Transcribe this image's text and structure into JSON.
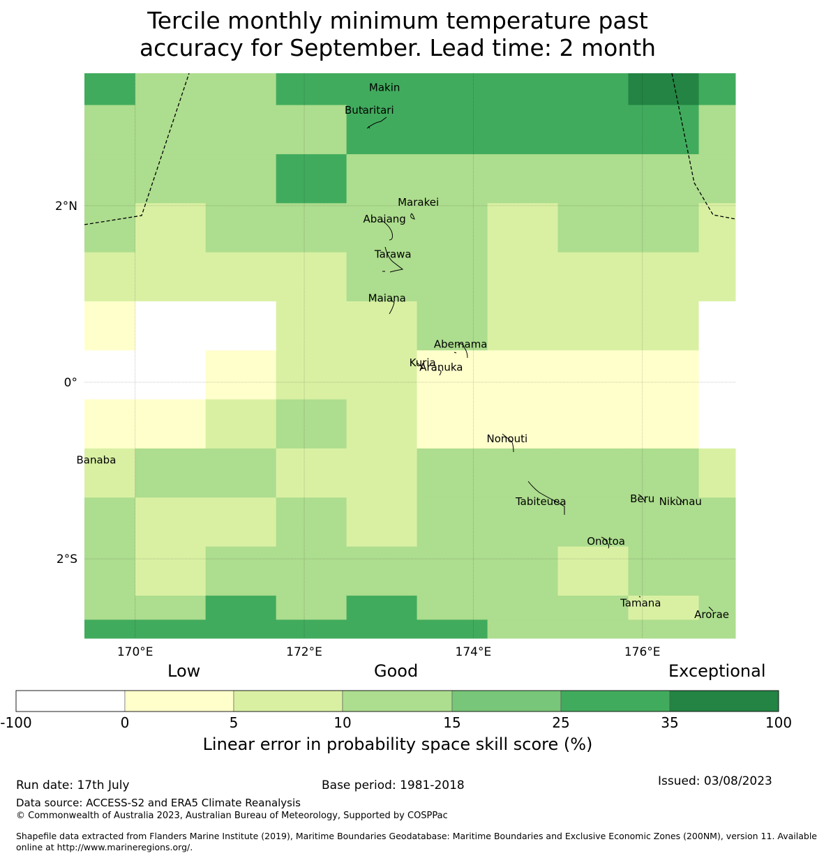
{
  "title": {
    "line1": "Tercile monthly minimum temperature past",
    "line2": "accuracy for September. Lead time: 2 month"
  },
  "map": {
    "lon_range": [
      169.4,
      177.1
    ],
    "lat_range": [
      -2.9,
      3.5
    ],
    "grid_lons": [
      170,
      172,
      174,
      176
    ],
    "grid_lats": [
      2,
      0,
      -2
    ],
    "x_ticks": [
      "170°E",
      "172°E",
      "174°E",
      "176°E"
    ],
    "y_ticks": [
      "2°N",
      "0°",
      "2°S"
    ],
    "cell_columns_lon": [
      169.4,
      170.0,
      170.833,
      171.667,
      172.5,
      173.333,
      174.167,
      175.0,
      175.833,
      176.667,
      177.1
    ],
    "cell_rows_lat_top_down": [
      3.5,
      3.14,
      2.583,
      2.028,
      1.472,
      0.917,
      0.361,
      -0.194,
      -0.75,
      -1.306,
      -1.861,
      -2.417,
      -2.69,
      -2.9
    ],
    "skill_classes_grid": [
      [
        5,
        3,
        3,
        5,
        5,
        5,
        5,
        5,
        6,
        5
      ],
      [
        3,
        3,
        3,
        3,
        5,
        5,
        5,
        5,
        5,
        3
      ],
      [
        3,
        3,
        3,
        5,
        3,
        3,
        3,
        3,
        3,
        3
      ],
      [
        3,
        2,
        3,
        3,
        3,
        3,
        2,
        3,
        3,
        2
      ],
      [
        2,
        2,
        2,
        2,
        3,
        3,
        2,
        2,
        2,
        2
      ],
      [
        1,
        0,
        0,
        2,
        2,
        3,
        2,
        2,
        2,
        0
      ],
      [
        0,
        0,
        1,
        2,
        2,
        1,
        1,
        1,
        1,
        0
      ],
      [
        1,
        1,
        2,
        3,
        2,
        1,
        1,
        1,
        1,
        0
      ],
      [
        2,
        3,
        3,
        2,
        2,
        3,
        3,
        3,
        3,
        2
      ],
      [
        3,
        2,
        2,
        3,
        2,
        3,
        3,
        3,
        3,
        3
      ],
      [
        3,
        2,
        3,
        3,
        3,
        3,
        3,
        2,
        3,
        3
      ],
      [
        3,
        3,
        5,
        3,
        5,
        3,
        3,
        3,
        2,
        3
      ],
      [
        5,
        5,
        5,
        5,
        5,
        5,
        3,
        3,
        3,
        3
      ]
    ],
    "islands": [
      {
        "name": "Makin",
        "lon": 172.95,
        "lat": 3.34
      },
      {
        "name": "Butaritari",
        "lon": 172.77,
        "lat": 3.08
      },
      {
        "name": "Marakei",
        "lon": 173.35,
        "lat": 2.04
      },
      {
        "name": "Abaiang",
        "lon": 172.95,
        "lat": 1.85
      },
      {
        "name": "Tarawa",
        "lon": 173.05,
        "lat": 1.45
      },
      {
        "name": "Maiana",
        "lon": 172.98,
        "lat": 0.95
      },
      {
        "name": "Abemama",
        "lon": 173.85,
        "lat": 0.43
      },
      {
        "name": "Kuria",
        "lon": 173.4,
        "lat": 0.22
      },
      {
        "name": "Aranuka",
        "lon": 173.62,
        "lat": 0.17
      },
      {
        "name": "Nonouti",
        "lon": 174.4,
        "lat": -0.64
      },
      {
        "name": "Banaba",
        "lon": 169.54,
        "lat": -0.88
      },
      {
        "name": "Tabiteuea",
        "lon": 174.8,
        "lat": -1.35
      },
      {
        "name": "Beru",
        "lon": 176.0,
        "lat": -1.32
      },
      {
        "name": "Nikunau",
        "lon": 176.45,
        "lat": -1.35
      },
      {
        "name": "Onotoa",
        "lon": 175.57,
        "lat": -1.8
      },
      {
        "name": "Tamana",
        "lon": 175.98,
        "lat": -2.5
      },
      {
        "name": "Arorae",
        "lon": 176.82,
        "lat": -2.63
      }
    ]
  },
  "legend": {
    "categories": [
      "Low",
      "Good",
      "Exceptional"
    ],
    "ticks": [
      "-100",
      "0",
      "5",
      "10",
      "15",
      "25",
      "35",
      "100"
    ],
    "colors": [
      "#ffffff",
      "#ffffcc",
      "#d9f0a3",
      "#addd8e",
      "#78c679",
      "#41ab5d",
      "#238443"
    ],
    "title": "Linear error in probability space skill score (%)"
  },
  "footer": {
    "run_date": "Run date: 17th July",
    "base_period": "Base period: 1981-2018",
    "issued": "Issued: 03/08/2023",
    "data_source": "Data source: ACCESS-S2 and ERA5 Climate Reanalysis",
    "copyright": "© Commonwealth of Australia 2023, Australian Bureau of Meteorology, Supported by COSPPac",
    "shapefile_line1": "Shapefile data extracted from Flanders Marine Institute (2019), Maritime Boundaries Geodatabase: Maritime Boundaries and Exclusive Economic Zones (200NM), version 11. Available",
    "shapefile_line2": "online at http://www.marineregions.org/."
  }
}
